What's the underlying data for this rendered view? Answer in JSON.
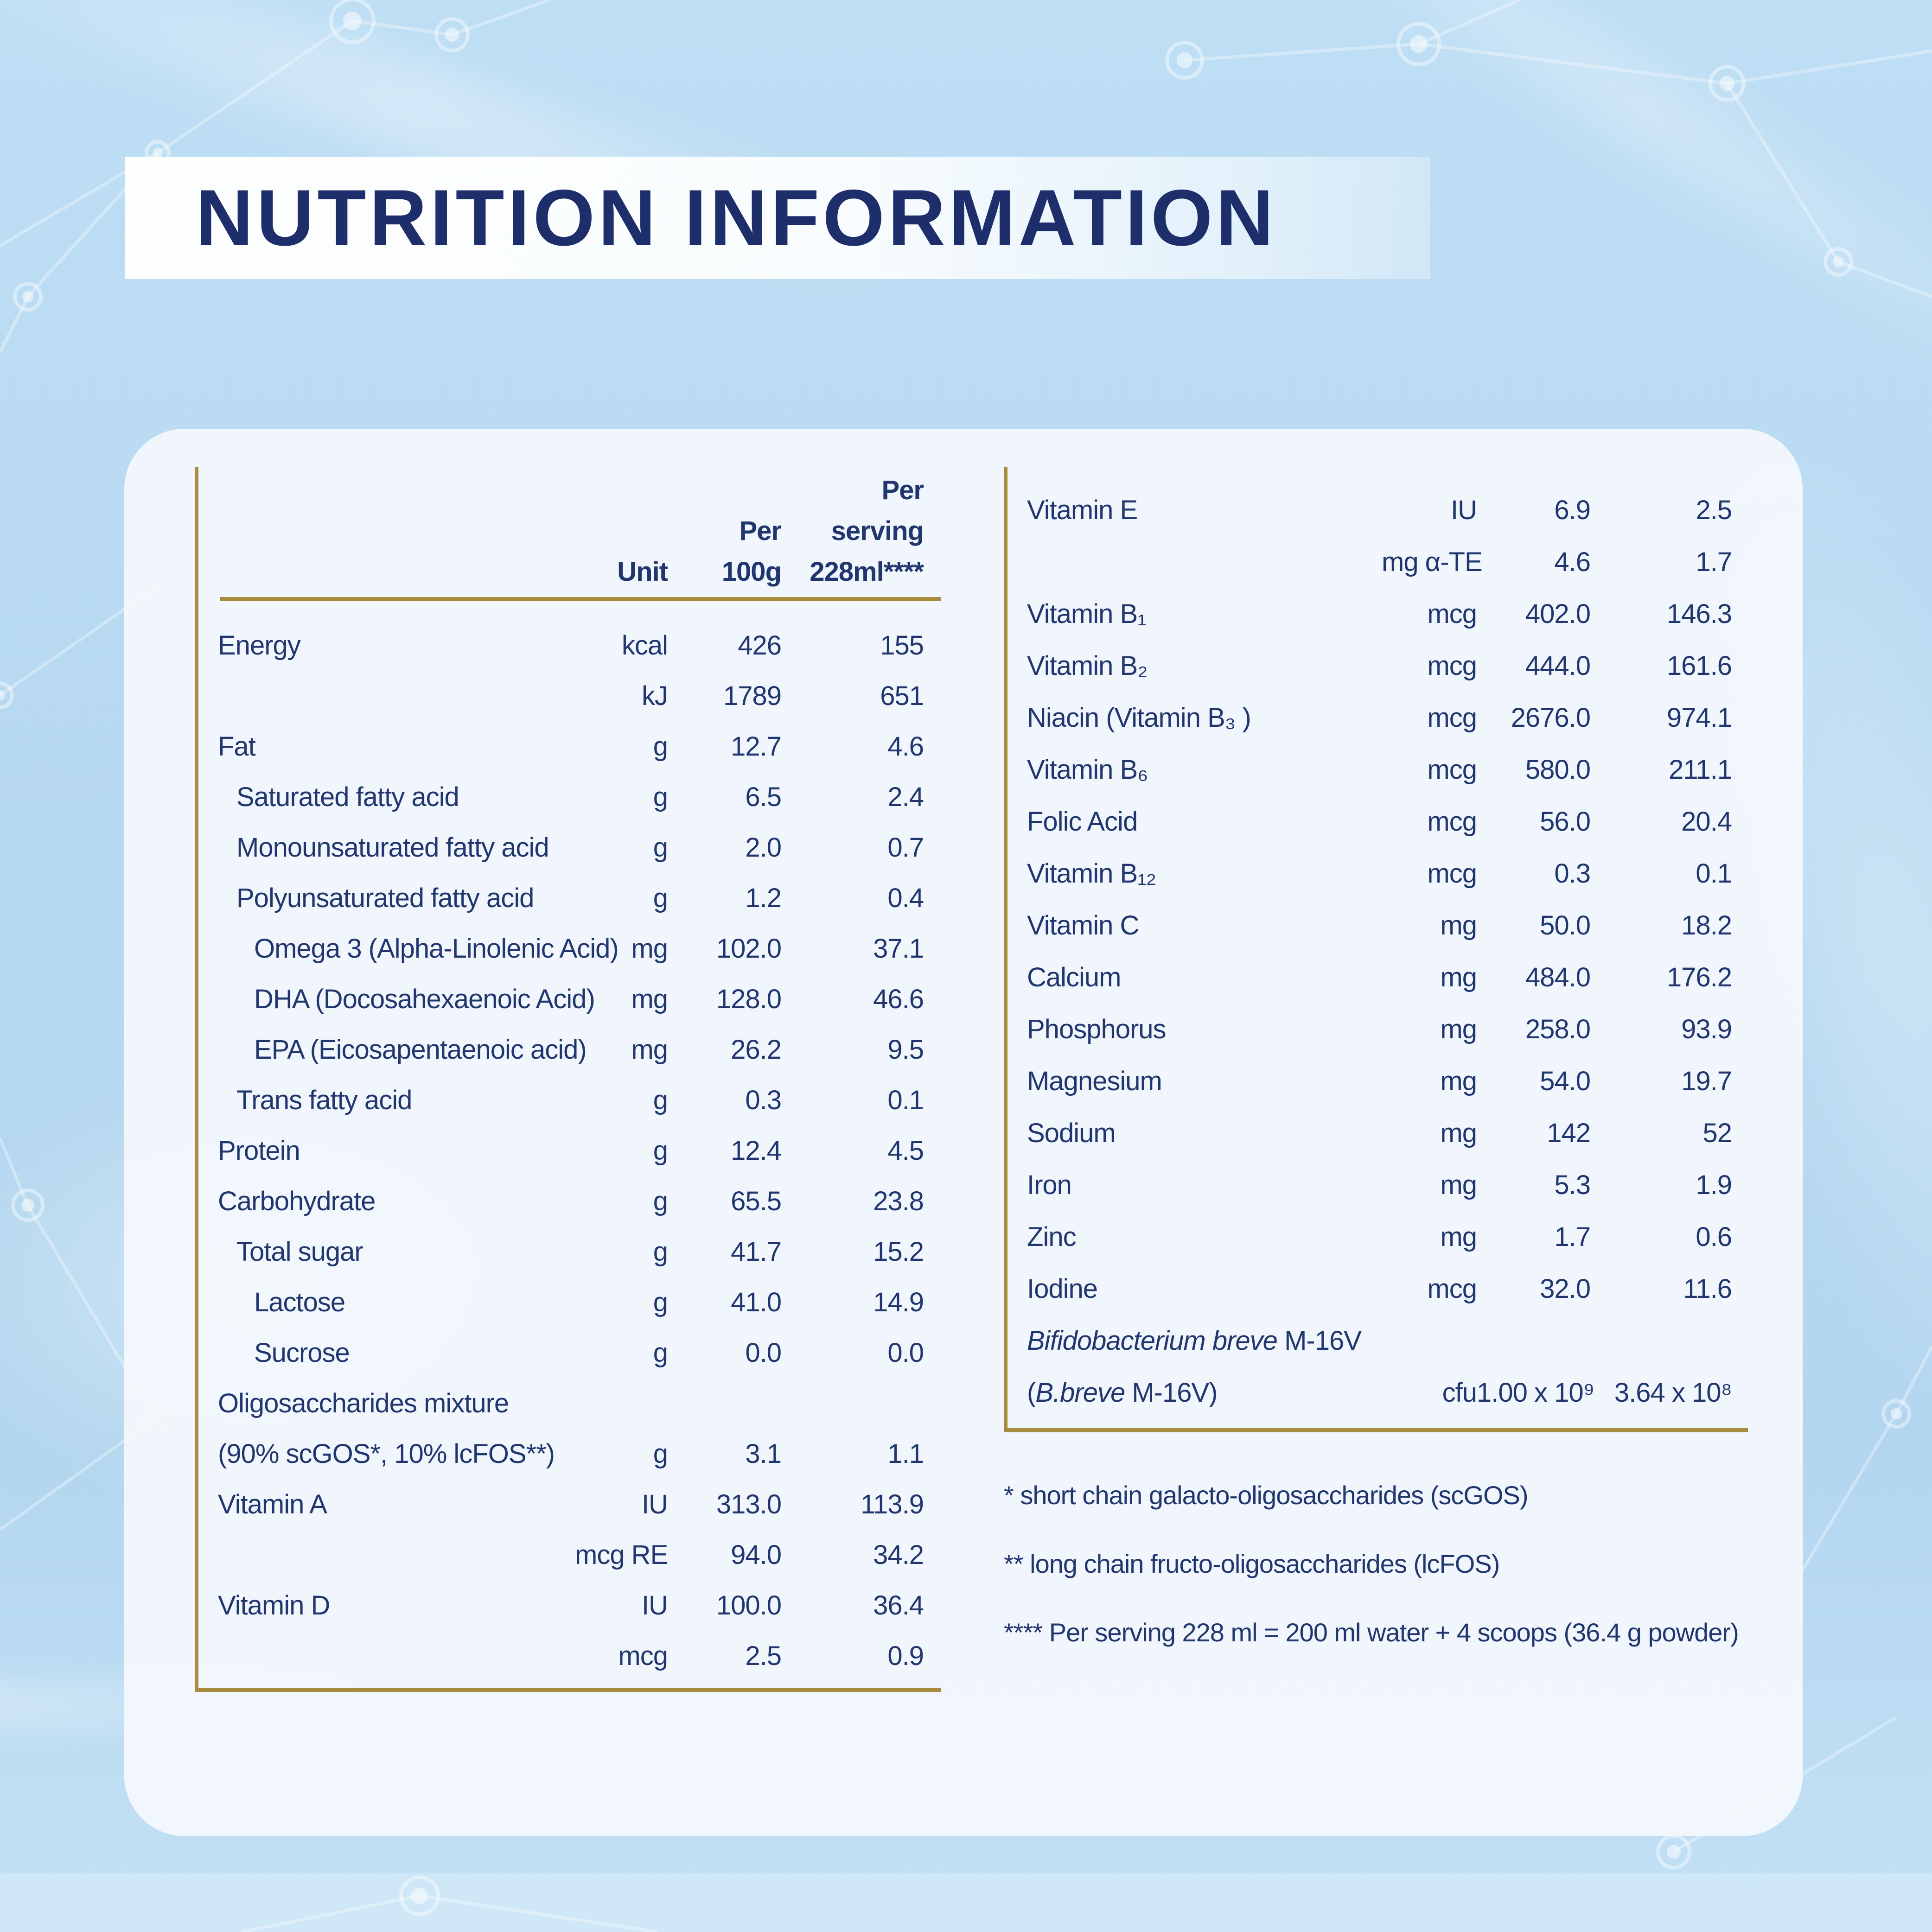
{
  "page": {
    "title": "NUTRITION INFORMATION"
  },
  "colors": {
    "background_blue": "#b7d9f0",
    "card_white": "#f3f8fc",
    "navy_text": "#21366f",
    "title_navy": "#1d2e6b",
    "gold_line": "#a88c3e"
  },
  "nutrition_table": {
    "header": {
      "unit": "Unit",
      "per_100g": [
        "Per",
        "100g"
      ],
      "per_serving": [
        "Per",
        "serving",
        "228ml****"
      ]
    },
    "left_rows": [
      {
        "label": "Energy",
        "indent": 0,
        "unit": "kcal",
        "per100": "426",
        "serving": "155"
      },
      {
        "label": "",
        "indent": 0,
        "unit": "kJ",
        "per100": "1789",
        "serving": "651"
      },
      {
        "label": "Fat",
        "indent": 0,
        "unit": "g",
        "per100": "12.7",
        "serving": "4.6"
      },
      {
        "label": "Saturated fatty acid",
        "indent": 1,
        "unit": "g",
        "per100": "6.5",
        "serving": "2.4"
      },
      {
        "label": "Monounsaturated fatty acid",
        "indent": 1,
        "unit": "g",
        "per100": "2.0",
        "serving": "0.7"
      },
      {
        "label": "Polyunsaturated fatty acid",
        "indent": 1,
        "unit": "g",
        "per100": "1.2",
        "serving": "0.4"
      },
      {
        "label": "Omega 3 (Alpha-Linolenic Acid)",
        "indent": 2,
        "unit": "mg",
        "per100": "102.0",
        "serving": "37.1"
      },
      {
        "label": "DHA (Docosahexaenoic Acid)",
        "indent": 2,
        "unit": "mg",
        "per100": "128.0",
        "serving": "46.6"
      },
      {
        "label": "EPA (Eicosapentaenoic acid)",
        "indent": 2,
        "unit": "mg",
        "per100": "26.2",
        "serving": "9.5"
      },
      {
        "label": "Trans fatty acid",
        "indent": 1,
        "unit": "g",
        "per100": "0.3",
        "serving": "0.1"
      },
      {
        "label": "Protein",
        "indent": 0,
        "unit": "g",
        "per100": "12.4",
        "serving": "4.5"
      },
      {
        "label": "Carbohydrate",
        "indent": 0,
        "unit": "g",
        "per100": "65.5",
        "serving": "23.8"
      },
      {
        "label": "Total sugar",
        "indent": 1,
        "unit": "g",
        "per100": "41.7",
        "serving": "15.2"
      },
      {
        "label": "Lactose",
        "indent": 2,
        "unit": "g",
        "per100": "41.0",
        "serving": "14.9"
      },
      {
        "label": "Sucrose",
        "indent": 2,
        "unit": "g",
        "per100": "0.0",
        "serving": "0.0"
      },
      {
        "label": "Oligosaccharides mixture",
        "indent": 0,
        "unit": "",
        "per100": "",
        "serving": ""
      },
      {
        "label": "(90% scGOS*, 10% lcFOS**)",
        "indent": 0,
        "unit": "g",
        "per100": "3.1",
        "serving": "1.1"
      },
      {
        "label": "Vitamin A",
        "indent": 0,
        "unit": "IU",
        "per100": "313.0",
        "serving": "113.9"
      },
      {
        "label": "",
        "indent": 0,
        "unit": "mcg RE",
        "per100": "94.0",
        "serving": "34.2"
      },
      {
        "label": "Vitamin D",
        "indent": 0,
        "unit": "IU",
        "per100": "100.0",
        "serving": "36.4"
      },
      {
        "label": "",
        "indent": 0,
        "unit": "mcg",
        "per100": "2.5",
        "serving": "0.9"
      }
    ],
    "right_rows": [
      {
        "label": "Vitamin E",
        "indent": 0,
        "unit": "IU",
        "per100": "6.9",
        "serving": "2.5"
      },
      {
        "label": "",
        "indent": 0,
        "unit": "mg α-TE",
        "per100": "4.6",
        "serving": "1.7"
      },
      {
        "label": "Vitamin B₁",
        "indent": 0,
        "unit": "mcg",
        "per100": "402.0",
        "serving": "146.3"
      },
      {
        "label": "Vitamin B₂",
        "indent": 0,
        "unit": "mcg",
        "per100": "444.0",
        "serving": "161.6"
      },
      {
        "label": "Niacin (Vitamin B₃ )",
        "indent": 0,
        "unit": "mcg",
        "per100": "2676.0",
        "serving": "974.1"
      },
      {
        "label": "Vitamin B₆",
        "indent": 0,
        "unit": "mcg",
        "per100": "580.0",
        "serving": "211.1"
      },
      {
        "label": "Folic Acid",
        "indent": 0,
        "unit": "mcg",
        "per100": "56.0",
        "serving": "20.4"
      },
      {
        "label": "Vitamin B₁₂",
        "indent": 0,
        "unit": "mcg",
        "per100": "0.3",
        "serving": "0.1"
      },
      {
        "label": "Vitamin C",
        "indent": 0,
        "unit": "mg",
        "per100": "50.0",
        "serving": "18.2"
      },
      {
        "label": "Calcium",
        "indent": 0,
        "unit": "mg",
        "per100": "484.0",
        "serving": "176.2"
      },
      {
        "label": "Phosphorus",
        "indent": 0,
        "unit": "mg",
        "per100": "258.0",
        "serving": "93.9"
      },
      {
        "label": "Magnesium",
        "indent": 0,
        "unit": "mg",
        "per100": "54.0",
        "serving": "19.7"
      },
      {
        "label": "Sodium",
        "indent": 0,
        "unit": "mg",
        "per100": "142",
        "serving": "52"
      },
      {
        "label": "Iron",
        "indent": 0,
        "unit": "mg",
        "per100": "5.3",
        "serving": "1.9"
      },
      {
        "label": "Zinc",
        "indent": 0,
        "unit": "mg",
        "per100": "1.7",
        "serving": "0.6"
      },
      {
        "label": "Iodine",
        "indent": 0,
        "unit": "mcg",
        "per100": "32.0",
        "serving": "11.6"
      },
      {
        "label_parts": [
          {
            "text": "Bifidobacterium breve",
            "italic": true
          },
          {
            "text": " M-16V",
            "italic": false
          }
        ],
        "indent": 0,
        "unit": "",
        "per100": "",
        "serving": ""
      },
      {
        "label_parts": [
          {
            "text": "(",
            "italic": false
          },
          {
            "text": "B.breve",
            "italic": true
          },
          {
            "text": " M-16V)",
            "italic": false
          }
        ],
        "indent": 0,
        "unit": "cfu",
        "per100": "1.00 x 10⁹",
        "serving": "3.64 x 10⁸"
      }
    ]
  },
  "footnotes": [
    "* short chain galacto-oligosaccharides (scGOS)",
    "** long chain fructo-oligosaccharides (lcFOS)",
    "**** Per serving 228 ml = 200 ml water + 4 scoops (36.4 g powder)"
  ]
}
